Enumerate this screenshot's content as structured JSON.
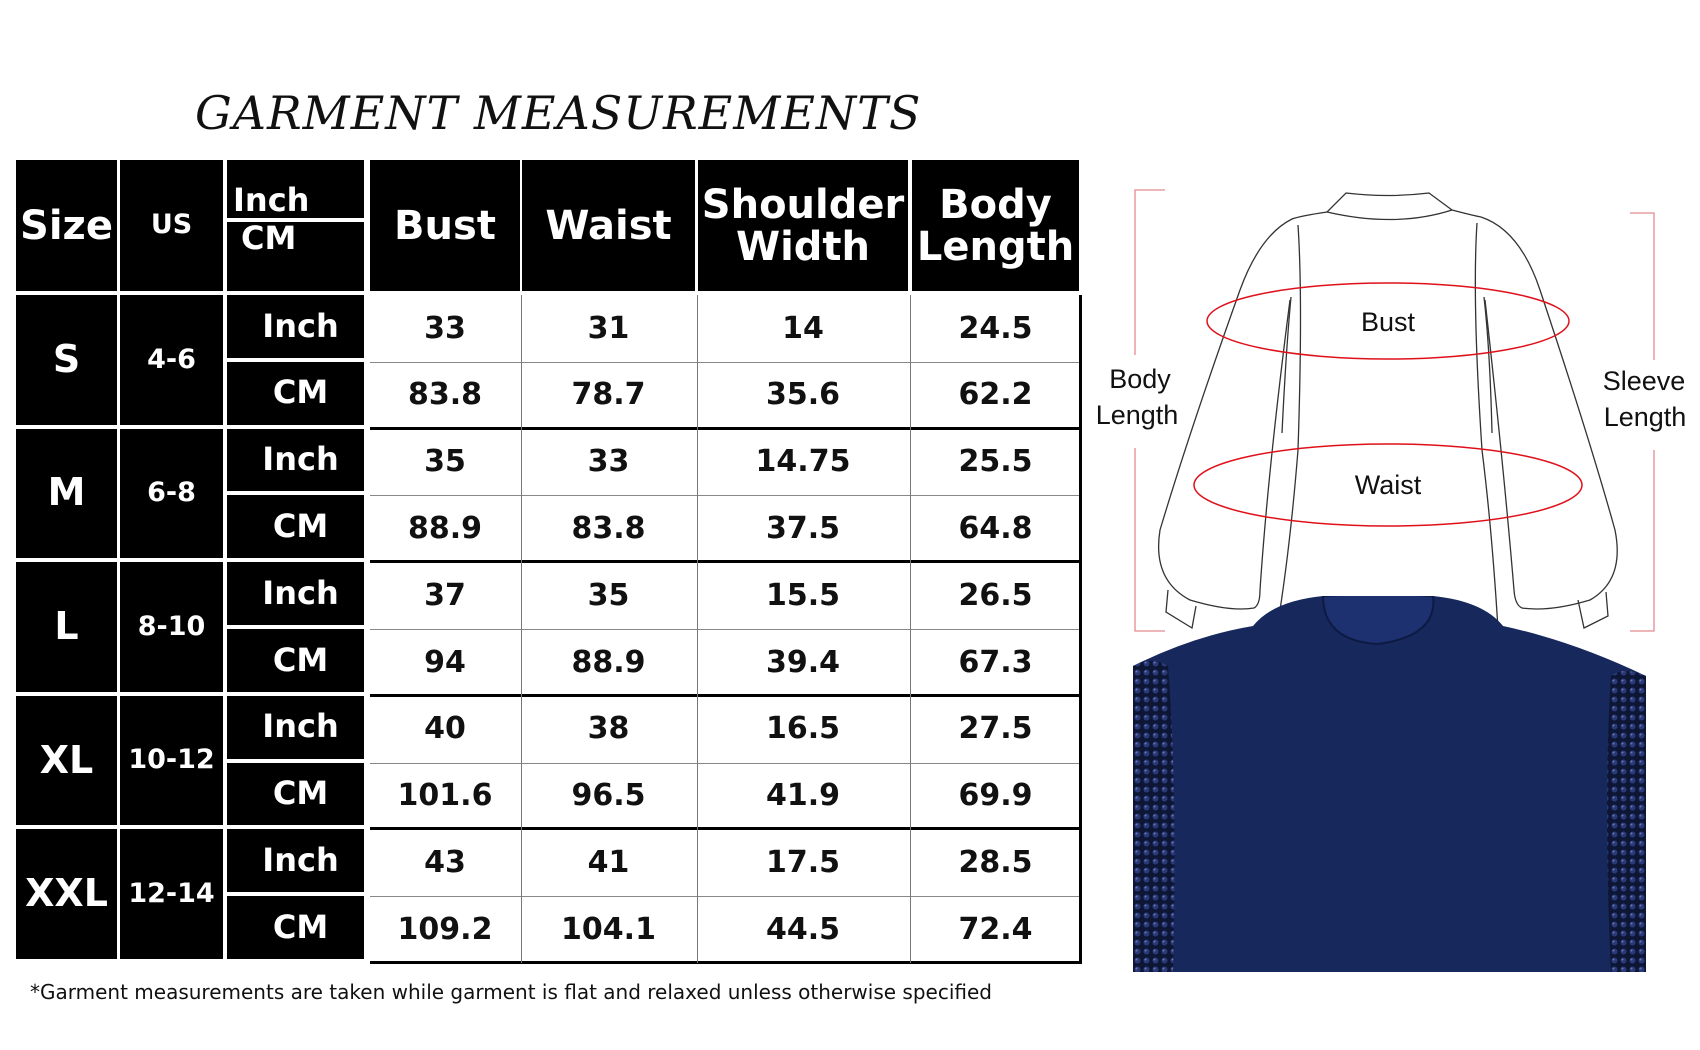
{
  "title": "GARMENT MEASUREMENTS",
  "table": {
    "headers": {
      "size": "Size",
      "us": "US",
      "unit_inch": "Inch",
      "unit_cm": "CM",
      "bust": "Bust",
      "waist": "Waist",
      "shoulder_width": "Shoulder Width",
      "body_length": "Body Length"
    },
    "rows": [
      {
        "size": "S",
        "us": "4-6",
        "inch": {
          "unit": "Inch",
          "bust": "33",
          "waist": "31",
          "shoulder": "14",
          "length": "24.5"
        },
        "cm": {
          "unit": "CM",
          "bust": "83.8",
          "waist": "78.7",
          "shoulder": "35.6",
          "length": "62.2"
        }
      },
      {
        "size": "M",
        "us": "6-8",
        "inch": {
          "unit": "Inch",
          "bust": "35",
          "waist": "33",
          "shoulder": "14.75",
          "length": "25.5"
        },
        "cm": {
          "unit": "CM",
          "bust": "88.9",
          "waist": "83.8",
          "shoulder": "37.5",
          "length": "64.8"
        }
      },
      {
        "size": "L",
        "us": "8-10",
        "inch": {
          "unit": "Inch",
          "bust": "37",
          "waist": "35",
          "shoulder": "15.5",
          "length": "26.5"
        },
        "cm": {
          "unit": "CM",
          "bust": "94",
          "waist": "88.9",
          "shoulder": "39.4",
          "length": "67.3"
        }
      },
      {
        "size": "XL",
        "us": "10-12",
        "inch": {
          "unit": "Inch",
          "bust": "40",
          "waist": "38",
          "shoulder": "16.5",
          "length": "27.5"
        },
        "cm": {
          "unit": "CM",
          "bust": "101.6",
          "waist": "96.5",
          "shoulder": "41.9",
          "length": "69.9"
        }
      },
      {
        "size": "XXL",
        "us": "12-14",
        "inch": {
          "unit": "Inch",
          "bust": "43",
          "waist": "41",
          "shoulder": "17.5",
          "length": "28.5"
        },
        "cm": {
          "unit": "CM",
          "bust": "109.2",
          "waist": "104.1",
          "shoulder": "44.5",
          "length": "72.4"
        }
      }
    ]
  },
  "footnote": "*Garment measurements are taken while garment is flat and relaxed unless otherwise specified",
  "diagram": {
    "bust": "Bust",
    "waist": "Waist",
    "body_length": [
      "Body",
      "Length"
    ],
    "sleeve_length": [
      "Sleeve",
      "Length"
    ],
    "outline_color": "#333333",
    "marker_color": "#e0101a",
    "bracket_color": "#e58a90"
  },
  "photo": {
    "garment_color": "#17285c",
    "sequin_color": "#0e1636"
  }
}
